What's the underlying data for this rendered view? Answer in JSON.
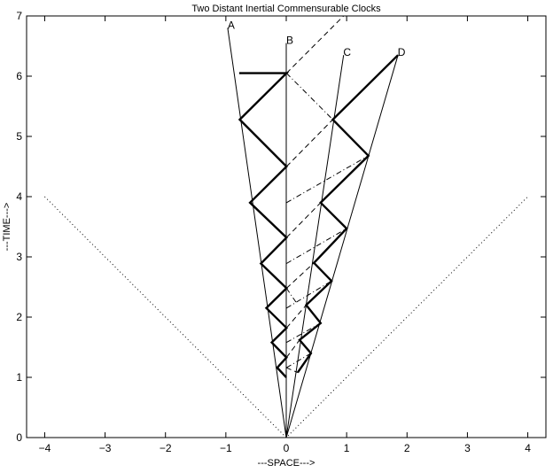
{
  "chart_data": {
    "type": "line",
    "title": "Two Distant Inertial Commensurable Clocks",
    "xlabel": "---SPACE--->",
    "ylabel": "---TIME--->",
    "xlim": [
      -4.3,
      4.3
    ],
    "ylim": [
      0,
      7
    ],
    "x_ticks": [
      -4,
      -3,
      -2,
      -1,
      0,
      1,
      2,
      3,
      4
    ],
    "y_ticks": [
      0,
      1,
      2,
      3,
      4,
      5,
      6,
      7
    ],
    "grid": false,
    "worldlines": [
      {
        "label": "A",
        "x": [
          0,
          -0.97
        ],
        "y": [
          0,
          6.8
        ]
      },
      {
        "label": "B",
        "x": [
          0,
          0
        ],
        "y": [
          0,
          6.55
        ]
      },
      {
        "label": "C",
        "x": [
          0,
          0.95
        ],
        "y": [
          0,
          6.35
        ]
      },
      {
        "label": "D",
        "x": [
          0,
          1.85
        ],
        "y": [
          0,
          6.35
        ]
      }
    ],
    "light_cone": [
      {
        "x": [
          -4,
          0,
          4
        ],
        "y": [
          4,
          0,
          4
        ]
      }
    ],
    "clock_left_zigzag": {
      "x": [
        0,
        -0.15,
        0.005,
        -0.24,
        0.005,
        -0.33,
        0.005,
        -0.42,
        0.005,
        -0.6,
        0.005,
        -0.77,
        0.005,
        -0.78,
        0.005
      ],
      "y": [
        1.0,
        1.16,
        1.33,
        1.58,
        1.82,
        2.15,
        2.48,
        2.89,
        3.32,
        3.9,
        4.5,
        5.28,
        6.05,
        6.05,
        6.05
      ]
    },
    "clock_right_zigzag": {
      "x": [
        0.19,
        0.41,
        0.22,
        0.57,
        0.33,
        0.75,
        0.46,
        1.0,
        0.57,
        1.36,
        0.77,
        1.85
      ],
      "y": [
        1.08,
        1.4,
        1.62,
        1.9,
        2.2,
        2.6,
        2.9,
        3.47,
        3.9,
        4.68,
        5.28,
        6.35
      ]
    },
    "signals_dashed": [
      {
        "x": [
          0.0,
          0.19
        ],
        "y": [
          1.16,
          1.08
        ]
      },
      {
        "x": [
          0.005,
          0.22
        ],
        "y": [
          1.33,
          1.62
        ]
      },
      {
        "x": [
          0.005,
          0.33
        ],
        "y": [
          1.82,
          2.2
        ]
      },
      {
        "x": [
          0.005,
          0.46
        ],
        "y": [
          2.48,
          2.9
        ]
      },
      {
        "x": [
          0.005,
          0.57
        ],
        "y": [
          3.32,
          3.9
        ]
      },
      {
        "x": [
          0.005,
          0.77
        ],
        "y": [
          4.5,
          5.28
        ]
      },
      {
        "x": [
          0.005,
          0.95
        ],
        "y": [
          6.05,
          7.0
        ]
      }
    ],
    "signals_dashdot": [
      {
        "x": [
          0.005,
          0.41
        ],
        "y": [
          1.16,
          1.4
        ]
      },
      {
        "x": [
          0.005,
          0.57
        ],
        "y": [
          1.58,
          1.9
        ]
      },
      {
        "x": [
          0.005,
          0.75
        ],
        "y": [
          2.15,
          2.6
        ]
      },
      {
        "x": [
          0.005,
          1.0
        ],
        "y": [
          2.89,
          3.47
        ]
      },
      {
        "x": [
          0.005,
          1.36
        ],
        "y": [
          3.9,
          4.68
        ]
      },
      {
        "x": [
          0.005,
          0.77
        ],
        "y": [
          6.05,
          5.28
        ]
      },
      {
        "x": [
          0.005,
          0.16
        ],
        "y": [
          2.48,
          2.25
        ]
      }
    ]
  }
}
